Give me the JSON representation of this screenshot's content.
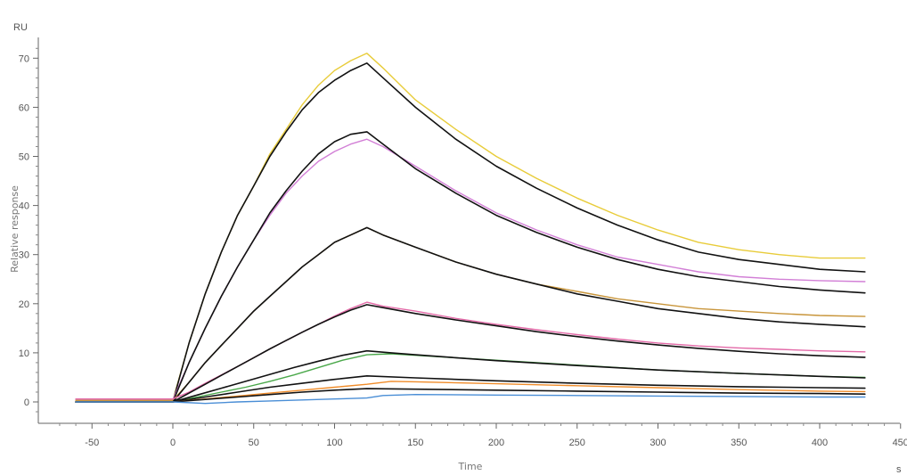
{
  "chart_data": {
    "type": "line",
    "title": "",
    "xlabel": "Time",
    "ylabel": "Relative response",
    "x_unit": "s",
    "y_unit": "RU",
    "xlim": [
      -72,
      450
    ],
    "ylim": [
      -3,
      74
    ],
    "x_ticks": [
      -50,
      0,
      50,
      100,
      150,
      200,
      250,
      300,
      350,
      400,
      450
    ],
    "y_ticks": [
      0,
      10,
      20,
      30,
      40,
      50,
      60,
      70
    ],
    "grid": false,
    "legend": "none",
    "series": [
      {
        "color": "#e8cc3a",
        "points": [
          [
            -60,
            0.3
          ],
          [
            0,
            0.3
          ],
          [
            10,
            12
          ],
          [
            20,
            22
          ],
          [
            30,
            30.5
          ],
          [
            40,
            38
          ],
          [
            50,
            44
          ],
          [
            60,
            50.5
          ],
          [
            70,
            55.5
          ],
          [
            80,
            60.5
          ],
          [
            90,
            64.5
          ],
          [
            100,
            67.5
          ],
          [
            110,
            69.5
          ],
          [
            120,
            71
          ],
          [
            130,
            68
          ],
          [
            150,
            61.5
          ],
          [
            175,
            55.5
          ],
          [
            200,
            50
          ],
          [
            225,
            45.5
          ],
          [
            250,
            41.5
          ],
          [
            275,
            38
          ],
          [
            300,
            35
          ],
          [
            325,
            32.5
          ],
          [
            350,
            31
          ],
          [
            375,
            30
          ],
          [
            400,
            29.3
          ],
          [
            428,
            29.3
          ]
        ]
      },
      {
        "color": "#111111",
        "points": [
          [
            -60,
            0
          ],
          [
            0,
            0
          ],
          [
            10,
            12
          ],
          [
            20,
            22
          ],
          [
            30,
            30.5
          ],
          [
            40,
            38
          ],
          [
            50,
            44
          ],
          [
            60,
            50
          ],
          [
            70,
            55
          ],
          [
            80,
            59.5
          ],
          [
            90,
            63
          ],
          [
            100,
            65.5
          ],
          [
            110,
            67.5
          ],
          [
            120,
            69
          ],
          [
            130,
            66
          ],
          [
            150,
            60
          ],
          [
            175,
            53.5
          ],
          [
            200,
            48
          ],
          [
            225,
            43.5
          ],
          [
            250,
            39.5
          ],
          [
            275,
            36
          ],
          [
            300,
            33
          ],
          [
            325,
            30.5
          ],
          [
            350,
            29
          ],
          [
            375,
            28
          ],
          [
            400,
            27
          ],
          [
            428,
            26.5
          ]
        ]
      },
      {
        "color": "#d27fd6",
        "points": [
          [
            -60,
            0.5
          ],
          [
            0,
            0.5
          ],
          [
            10,
            8
          ],
          [
            20,
            15
          ],
          [
            30,
            21.5
          ],
          [
            40,
            27.5
          ],
          [
            50,
            33
          ],
          [
            60,
            38
          ],
          [
            70,
            42.5
          ],
          [
            80,
            46
          ],
          [
            90,
            49
          ],
          [
            100,
            51
          ],
          [
            110,
            52.5
          ],
          [
            120,
            53.5
          ],
          [
            130,
            52
          ],
          [
            150,
            48
          ],
          [
            175,
            43
          ],
          [
            200,
            38.5
          ],
          [
            225,
            35
          ],
          [
            250,
            32
          ],
          [
            275,
            29.5
          ],
          [
            300,
            28
          ],
          [
            325,
            26.5
          ],
          [
            350,
            25.5
          ],
          [
            375,
            25
          ],
          [
            400,
            24.7
          ],
          [
            428,
            24.5
          ]
        ]
      },
      {
        "color": "#111111",
        "points": [
          [
            -60,
            0
          ],
          [
            0,
            0
          ],
          [
            10,
            8
          ],
          [
            20,
            15
          ],
          [
            30,
            21.5
          ],
          [
            40,
            27.5
          ],
          [
            50,
            33
          ],
          [
            60,
            38.5
          ],
          [
            70,
            43
          ],
          [
            80,
            47
          ],
          [
            90,
            50.5
          ],
          [
            100,
            53
          ],
          [
            110,
            54.5
          ],
          [
            120,
            55
          ],
          [
            130,
            52.5
          ],
          [
            150,
            47.5
          ],
          [
            175,
            42.5
          ],
          [
            200,
            38
          ],
          [
            225,
            34.5
          ],
          [
            250,
            31.5
          ],
          [
            275,
            29
          ],
          [
            300,
            27
          ],
          [
            325,
            25.5
          ],
          [
            350,
            24.5
          ],
          [
            375,
            23.5
          ],
          [
            400,
            22.8
          ],
          [
            428,
            22.2
          ]
        ]
      },
      {
        "color": "#c8953a",
        "points": [
          [
            -60,
            0.3
          ],
          [
            0,
            0.3
          ],
          [
            10,
            4
          ],
          [
            20,
            8
          ],
          [
            30,
            11.5
          ],
          [
            40,
            15
          ],
          [
            50,
            18.5
          ],
          [
            60,
            21.5
          ],
          [
            70,
            24.5
          ],
          [
            80,
            27.5
          ],
          [
            90,
            30
          ],
          [
            100,
            32.5
          ],
          [
            110,
            34
          ],
          [
            120,
            35.5
          ],
          [
            130,
            34
          ],
          [
            150,
            31.5
          ],
          [
            175,
            28.5
          ],
          [
            200,
            26
          ],
          [
            225,
            24
          ],
          [
            250,
            22.5
          ],
          [
            275,
            21
          ],
          [
            300,
            20
          ],
          [
            325,
            19
          ],
          [
            350,
            18.5
          ],
          [
            375,
            18
          ],
          [
            400,
            17.6
          ],
          [
            428,
            17.4
          ]
        ]
      },
      {
        "color": "#111111",
        "points": [
          [
            -60,
            0
          ],
          [
            0,
            0
          ],
          [
            10,
            4
          ],
          [
            20,
            8
          ],
          [
            30,
            11.5
          ],
          [
            40,
            15
          ],
          [
            50,
            18.5
          ],
          [
            60,
            21.5
          ],
          [
            70,
            24.5
          ],
          [
            80,
            27.5
          ],
          [
            90,
            30
          ],
          [
            100,
            32.5
          ],
          [
            110,
            34
          ],
          [
            120,
            35.5
          ],
          [
            130,
            34
          ],
          [
            150,
            31.5
          ],
          [
            175,
            28.5
          ],
          [
            200,
            26
          ],
          [
            225,
            24
          ],
          [
            250,
            22
          ],
          [
            275,
            20.5
          ],
          [
            300,
            19
          ],
          [
            325,
            18
          ],
          [
            350,
            17
          ],
          [
            375,
            16.3
          ],
          [
            400,
            15.8
          ],
          [
            428,
            15.3
          ]
        ]
      },
      {
        "color": "#e36aa8",
        "points": [
          [
            -60,
            0.6
          ],
          [
            0,
            0.6
          ],
          [
            10,
            2
          ],
          [
            20,
            3.8
          ],
          [
            30,
            5.5
          ],
          [
            40,
            7.2
          ],
          [
            50,
            9
          ],
          [
            60,
            10.8
          ],
          [
            70,
            12.5
          ],
          [
            80,
            14.2
          ],
          [
            90,
            15.8
          ],
          [
            100,
            17.5
          ],
          [
            110,
            19
          ],
          [
            120,
            20.3
          ],
          [
            130,
            19.5
          ],
          [
            150,
            18.5
          ],
          [
            175,
            17
          ],
          [
            200,
            15.8
          ],
          [
            225,
            14.7
          ],
          [
            250,
            13.7
          ],
          [
            275,
            12.8
          ],
          [
            300,
            12
          ],
          [
            325,
            11.4
          ],
          [
            350,
            11
          ],
          [
            375,
            10.7
          ],
          [
            400,
            10.4
          ],
          [
            428,
            10.2
          ]
        ]
      },
      {
        "color": "#111111",
        "points": [
          [
            -60,
            0
          ],
          [
            0,
            0
          ],
          [
            10,
            1.8
          ],
          [
            20,
            3.6
          ],
          [
            30,
            5.4
          ],
          [
            40,
            7.2
          ],
          [
            50,
            9
          ],
          [
            60,
            10.8
          ],
          [
            70,
            12.5
          ],
          [
            80,
            14.2
          ],
          [
            90,
            15.8
          ],
          [
            100,
            17.3
          ],
          [
            110,
            18.7
          ],
          [
            120,
            19.8
          ],
          [
            130,
            19.2
          ],
          [
            150,
            18
          ],
          [
            175,
            16.7
          ],
          [
            200,
            15.5
          ],
          [
            225,
            14.3
          ],
          [
            250,
            13.3
          ],
          [
            275,
            12.4
          ],
          [
            300,
            11.6
          ],
          [
            325,
            10.9
          ],
          [
            350,
            10.3
          ],
          [
            375,
            9.8
          ],
          [
            400,
            9.4
          ],
          [
            428,
            9.1
          ]
        ]
      },
      {
        "color": "#4aa84a",
        "points": [
          [
            -60,
            0
          ],
          [
            0,
            0
          ],
          [
            15,
            1
          ],
          [
            30,
            2
          ],
          [
            45,
            3
          ],
          [
            60,
            4.2
          ],
          [
            75,
            5.5
          ],
          [
            90,
            7
          ],
          [
            105,
            8.5
          ],
          [
            120,
            9.6
          ],
          [
            135,
            9.8
          ],
          [
            150,
            9.5
          ],
          [
            175,
            9
          ],
          [
            200,
            8.5
          ],
          [
            250,
            7.5
          ],
          [
            300,
            6.5
          ],
          [
            350,
            5.8
          ],
          [
            400,
            5.2
          ],
          [
            428,
            5.0
          ]
        ]
      },
      {
        "color": "#111111",
        "points": [
          [
            -60,
            0
          ],
          [
            0,
            0
          ],
          [
            15,
            1.4
          ],
          [
            30,
            2.8
          ],
          [
            45,
            4.2
          ],
          [
            60,
            5.6
          ],
          [
            75,
            7
          ],
          [
            90,
            8.3
          ],
          [
            105,
            9.5
          ],
          [
            120,
            10.4
          ],
          [
            135,
            10
          ],
          [
            150,
            9.6
          ],
          [
            175,
            9
          ],
          [
            200,
            8.4
          ],
          [
            250,
            7.4
          ],
          [
            300,
            6.5
          ],
          [
            350,
            5.8
          ],
          [
            400,
            5.2
          ],
          [
            428,
            4.9
          ]
        ]
      },
      {
        "color": "#111111",
        "points": [
          [
            -60,
            0
          ],
          [
            0,
            0
          ],
          [
            20,
            1
          ],
          [
            40,
            2
          ],
          [
            60,
            3
          ],
          [
            80,
            3.8
          ],
          [
            100,
            4.6
          ],
          [
            120,
            5.3
          ],
          [
            150,
            4.9
          ],
          [
            200,
            4.3
          ],
          [
            250,
            3.8
          ],
          [
            300,
            3.4
          ],
          [
            350,
            3.1
          ],
          [
            400,
            2.9
          ],
          [
            428,
            2.8
          ]
        ]
      },
      {
        "color": "#f08c2a",
        "points": [
          [
            -60,
            0
          ],
          [
            0,
            0
          ],
          [
            20,
            0.6
          ],
          [
            40,
            1.2
          ],
          [
            60,
            1.8
          ],
          [
            80,
            2.4
          ],
          [
            100,
            3
          ],
          [
            120,
            3.6
          ],
          [
            135,
            4.2
          ],
          [
            150,
            4.1
          ],
          [
            200,
            3.7
          ],
          [
            250,
            3.3
          ],
          [
            300,
            2.9
          ],
          [
            350,
            2.5
          ],
          [
            400,
            2.2
          ],
          [
            428,
            2.1
          ]
        ]
      },
      {
        "color": "#111111",
        "points": [
          [
            -60,
            0
          ],
          [
            0,
            0
          ],
          [
            20,
            0.5
          ],
          [
            40,
            1
          ],
          [
            60,
            1.5
          ],
          [
            80,
            2
          ],
          [
            100,
            2.4
          ],
          [
            120,
            2.7
          ],
          [
            150,
            2.6
          ],
          [
            200,
            2.4
          ],
          [
            250,
            2.2
          ],
          [
            300,
            2
          ],
          [
            350,
            1.8
          ],
          [
            400,
            1.7
          ],
          [
            428,
            1.6
          ]
        ]
      },
      {
        "color": "#4a8ed6",
        "points": [
          [
            -60,
            0
          ],
          [
            0,
            0
          ],
          [
            20,
            -0.3
          ],
          [
            40,
            0
          ],
          [
            60,
            0.2
          ],
          [
            80,
            0.4
          ],
          [
            100,
            0.6
          ],
          [
            120,
            0.8
          ],
          [
            130,
            1.3
          ],
          [
            150,
            1.5
          ],
          [
            200,
            1.4
          ],
          [
            250,
            1.3
          ],
          [
            300,
            1.2
          ],
          [
            350,
            1.1
          ],
          [
            400,
            1.0
          ],
          [
            428,
            1.0
          ]
        ]
      }
    ]
  }
}
